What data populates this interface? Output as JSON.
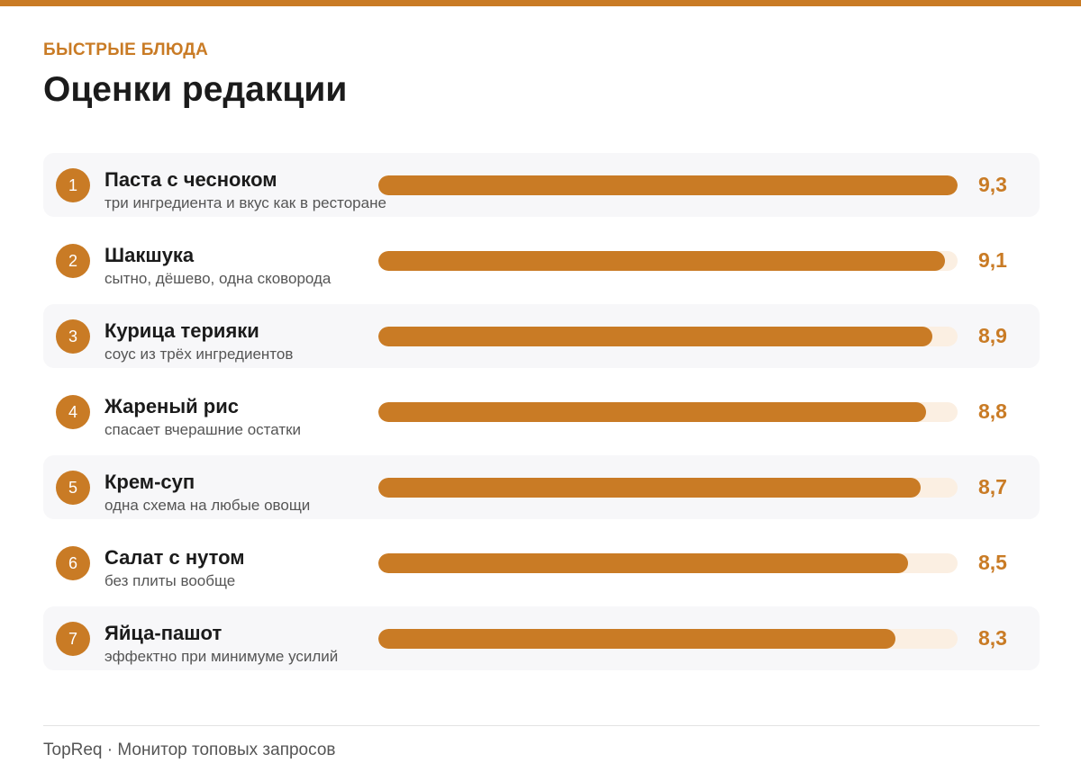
{
  "header": {
    "kicker": "БЫСТРЫЕ БЛЮДА",
    "title": "Оценки редакции"
  },
  "colors": {
    "accent": "#c97b25",
    "track": "#fbefe2",
    "row_shade": "#f7f7f9"
  },
  "chart_data": {
    "type": "bar",
    "orientation": "horizontal",
    "scale_max": 9.3,
    "items": [
      {
        "rank": "1",
        "name": "Паста с чесноком",
        "desc": "три ингредиента и вкус как в ресторане",
        "value": 9.3,
        "value_label": "9,3"
      },
      {
        "rank": "2",
        "name": "Шакшука",
        "desc": "сытно, дёшево, одна сковорода",
        "value": 9.1,
        "value_label": "9,1"
      },
      {
        "rank": "3",
        "name": "Курица терияки",
        "desc": "соус из трёх ингредиентов",
        "value": 8.9,
        "value_label": "8,9"
      },
      {
        "rank": "4",
        "name": "Жареный рис",
        "desc": "спасает вчерашние остатки",
        "value": 8.8,
        "value_label": "8,8"
      },
      {
        "rank": "5",
        "name": "Крем-суп",
        "desc": "одна схема на любые овощи",
        "value": 8.7,
        "value_label": "8,7"
      },
      {
        "rank": "6",
        "name": "Салат с нутом",
        "desc": "без плиты вообще",
        "value": 8.5,
        "value_label": "8,5"
      },
      {
        "rank": "7",
        "name": "Яйца-пашот",
        "desc": "эффектно при минимуме усилий",
        "value": 8.3,
        "value_label": "8,3"
      }
    ]
  },
  "footer": {
    "text": "TopReq · Монитор топовых запросов"
  }
}
